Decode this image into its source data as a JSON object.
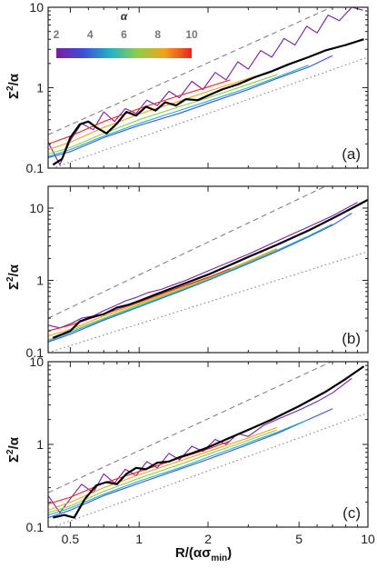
{
  "figure": {
    "x_axis_label_main": "R/(ασ",
    "x_axis_label_sub": "min",
    "x_axis_label_close": ")",
    "y_axis_label_main": "Σ",
    "y_axis_label_sup": "2",
    "y_axis_label_tail": "/α",
    "colorbar": {
      "title": "α",
      "tick_labels": [
        "2",
        "4",
        "6",
        "8",
        "10"
      ],
      "colors": [
        "#7a1fa2",
        "#3a4fd6",
        "#25b0c9",
        "#8ccf4a",
        "#f4a11e",
        "#e5261f"
      ]
    }
  },
  "chart_data": [
    {
      "type": "line",
      "panel_label": "(a)",
      "xscale": "log",
      "yscale": "log",
      "xlim": [
        0.4,
        10
      ],
      "ylim": [
        0.1,
        10
      ],
      "x_ticks": [
        0.5,
        1,
        2,
        5,
        10
      ],
      "x_tick_labels": [
        "",
        "",
        "",
        "",
        ""
      ],
      "y_ticks": [
        0.1,
        1,
        10
      ],
      "y_tick_labels": [
        "0.1",
        "1",
        "10"
      ],
      "reference_lines": [
        {
          "style": "dashed",
          "x": [
            0.4,
            10
          ],
          "y": [
            0.26,
            16.0
          ]
        },
        {
          "style": "dotted",
          "x": [
            0.4,
            10
          ],
          "y": [
            0.095,
            2.4
          ]
        }
      ],
      "series": [
        {
          "color": "#7a1fa2",
          "x": [
            0.4,
            0.45,
            0.5,
            0.56,
            0.63,
            0.7,
            0.78,
            0.87,
            0.97,
            1.08,
            1.2,
            1.35,
            1.5,
            1.7,
            1.9,
            2.15,
            2.4,
            2.7,
            3.0,
            3.4,
            3.8,
            4.3,
            4.8,
            5.4,
            6.0,
            6.7,
            7.5,
            8.5,
            9.5
          ],
          "y": [
            0.21,
            0.11,
            0.22,
            0.36,
            0.3,
            0.5,
            0.38,
            0.55,
            0.48,
            0.7,
            0.6,
            0.9,
            0.75,
            1.2,
            0.95,
            1.55,
            1.25,
            2.1,
            1.7,
            2.9,
            2.4,
            4.1,
            3.4,
            5.8,
            4.8,
            8.0,
            6.8,
            10.0,
            9.2
          ]
        },
        {
          "color": "#3a4fd6",
          "x": [
            0.4,
            0.5,
            0.7,
            1.0,
            1.5,
            2.0,
            3.0,
            4.0,
            5.5,
            7.0
          ],
          "y": [
            0.135,
            0.16,
            0.24,
            0.34,
            0.48,
            0.64,
            0.95,
            1.3,
            1.8,
            2.5
          ]
        },
        {
          "color": "#25b0c9",
          "x": [
            0.4,
            0.5,
            0.7,
            1.0,
            1.5,
            2.0,
            3.0,
            4.0,
            5.5
          ],
          "y": [
            0.14,
            0.17,
            0.25,
            0.36,
            0.52,
            0.68,
            1.0,
            1.35,
            1.9
          ]
        },
        {
          "color": "#8ccf4a",
          "x": [
            0.4,
            0.5,
            0.7,
            1.0,
            1.5,
            2.0,
            3.0,
            4.0
          ],
          "y": [
            0.15,
            0.18,
            0.27,
            0.4,
            0.58,
            0.75,
            1.1,
            1.45
          ]
        },
        {
          "color": "#f4a11e",
          "x": [
            0.4,
            0.5,
            0.7,
            1.0,
            1.5,
            2.0,
            3.0,
            4.0
          ],
          "y": [
            0.17,
            0.21,
            0.32,
            0.47,
            0.68,
            0.9,
            1.3,
            1.7
          ]
        },
        {
          "color": "#e5261f",
          "x": [
            0.4,
            0.5,
            0.7,
            1.0,
            1.5,
            2.0,
            2.5
          ],
          "y": [
            0.2,
            0.25,
            0.38,
            0.55,
            0.8,
            1.02,
            1.25
          ]
        },
        {
          "color": "#000000",
          "x": [
            0.42,
            0.46,
            0.5,
            0.55,
            0.6,
            0.65,
            0.72,
            0.8,
            0.88,
            0.97,
            1.07,
            1.18,
            1.3,
            1.45,
            1.6,
            1.8,
            2.0,
            2.3,
            2.7,
            3.2,
            3.8,
            4.5,
            5.5,
            6.5,
            8.0,
            9.6
          ],
          "y": [
            0.11,
            0.13,
            0.24,
            0.35,
            0.38,
            0.32,
            0.27,
            0.36,
            0.5,
            0.45,
            0.58,
            0.52,
            0.66,
            0.6,
            0.72,
            0.7,
            0.8,
            0.95,
            1.1,
            1.35,
            1.6,
            1.95,
            2.4,
            2.9,
            3.4,
            4.0
          ]
        }
      ]
    },
    {
      "type": "line",
      "panel_label": "(b)",
      "xscale": "log",
      "yscale": "log",
      "xlim": [
        0.4,
        10
      ],
      "ylim": [
        0.1,
        20
      ],
      "x_ticks": [
        0.5,
        1,
        2,
        5,
        10
      ],
      "x_tick_labels": [
        "",
        "",
        "",
        "",
        ""
      ],
      "y_ticks": [
        0.1,
        1,
        10
      ],
      "y_tick_labels": [
        "0.1",
        "1",
        "10"
      ],
      "reference_lines": [
        {
          "style": "dashed",
          "x": [
            0.4,
            10
          ],
          "y": [
            0.3,
            38.0
          ]
        },
        {
          "style": "dotted",
          "x": [
            0.4,
            10
          ],
          "y": [
            0.1,
            2.5
          ]
        }
      ],
      "series": [
        {
          "color": "#7a1fa2",
          "x": [
            0.4,
            0.45,
            0.5,
            0.56,
            0.63,
            0.7,
            0.78,
            0.87,
            0.97,
            1.1,
            1.25,
            1.4,
            1.6,
            2.0,
            3.0,
            4.0,
            5.5,
            7.0,
            9.0
          ],
          "y": [
            0.24,
            0.22,
            0.25,
            0.3,
            0.32,
            0.38,
            0.44,
            0.52,
            0.58,
            0.68,
            0.75,
            0.86,
            1.0,
            1.35,
            2.3,
            3.5,
            5.5,
            7.8,
            12.0
          ]
        },
        {
          "color": "#3a4fd6",
          "x": [
            0.4,
            0.5,
            0.7,
            1.0,
            1.5,
            2.0,
            3.0,
            4.0,
            5.5,
            7.0,
            8.5
          ],
          "y": [
            0.14,
            0.18,
            0.28,
            0.43,
            0.7,
            1.0,
            1.7,
            2.5,
            4.0,
            5.8,
            8.5
          ]
        },
        {
          "color": "#25b0c9",
          "x": [
            0.4,
            0.5,
            0.7,
            1.0,
            1.5,
            2.0,
            3.0,
            4.0,
            5.5,
            7.0
          ],
          "y": [
            0.145,
            0.19,
            0.29,
            0.44,
            0.72,
            1.02,
            1.75,
            2.6,
            4.1,
            6.0
          ]
        },
        {
          "color": "#8ccf4a",
          "x": [
            0.4,
            0.5,
            0.7,
            1.0,
            1.5,
            2.0,
            3.0,
            4.0
          ],
          "y": [
            0.15,
            0.2,
            0.3,
            0.46,
            0.74,
            1.05,
            1.8,
            2.7
          ]
        },
        {
          "color": "#f4a11e",
          "x": [
            0.4,
            0.5,
            0.7,
            1.0,
            1.5,
            2.0,
            3.0,
            4.0
          ],
          "y": [
            0.17,
            0.21,
            0.32,
            0.48,
            0.77,
            1.08,
            1.85,
            2.75
          ]
        },
        {
          "color": "#e5261f",
          "x": [
            0.4,
            0.5,
            0.7,
            1.0,
            1.5,
            2.0,
            2.5
          ],
          "y": [
            0.2,
            0.24,
            0.34,
            0.5,
            0.8,
            1.1,
            1.45
          ]
        },
        {
          "color": "#000000",
          "x": [
            0.42,
            0.5,
            0.55,
            0.62,
            0.7,
            0.8,
            0.9,
            1.0,
            1.2,
            1.5,
            2.0,
            3.0,
            4.0,
            5.5,
            7.0,
            10.0
          ],
          "y": [
            0.16,
            0.2,
            0.27,
            0.31,
            0.34,
            0.42,
            0.46,
            0.52,
            0.65,
            0.85,
            1.2,
            2.1,
            3.1,
            4.9,
            7.2,
            13.0
          ]
        }
      ]
    },
    {
      "type": "line",
      "panel_label": "(c)",
      "xscale": "log",
      "yscale": "log",
      "xlim": [
        0.4,
        10
      ],
      "ylim": [
        0.1,
        10
      ],
      "x_ticks": [
        0.5,
        1,
        2,
        5,
        10
      ],
      "x_tick_labels": [
        "0.5",
        "1",
        "2",
        "5",
        "10"
      ],
      "y_ticks": [
        0.1,
        1,
        10
      ],
      "y_tick_labels": [
        "0.1",
        "1",
        "10"
      ],
      "reference_lines": [
        {
          "style": "dashed",
          "x": [
            0.4,
            10
          ],
          "y": [
            0.26,
            16.0
          ]
        },
        {
          "style": "dotted",
          "x": [
            0.4,
            10
          ],
          "y": [
            0.095,
            2.4
          ]
        }
      ],
      "series": [
        {
          "color": "#7a1fa2",
          "x": [
            0.4,
            0.45,
            0.5,
            0.56,
            0.63,
            0.7,
            0.78,
            0.87,
            0.97,
            1.08,
            1.2,
            1.35,
            1.5,
            1.7,
            1.9,
            2.15,
            2.4,
            2.7,
            3.0,
            3.5,
            4.0,
            5.0,
            6.0,
            7.0,
            8.5
          ],
          "y": [
            0.24,
            0.15,
            0.22,
            0.33,
            0.26,
            0.44,
            0.34,
            0.5,
            0.42,
            0.62,
            0.52,
            0.78,
            0.65,
            0.95,
            0.82,
            1.15,
            1.0,
            1.35,
            1.25,
            1.7,
            2.0,
            2.6,
            3.3,
            4.2,
            6.3
          ]
        },
        {
          "color": "#3a4fd6",
          "x": [
            0.4,
            0.5,
            0.7,
            1.0,
            1.5,
            2.0,
            3.0,
            4.0,
            5.5,
            7.0
          ],
          "y": [
            0.13,
            0.16,
            0.24,
            0.34,
            0.5,
            0.66,
            1.0,
            1.35,
            2.0,
            2.7
          ]
        },
        {
          "color": "#25b0c9",
          "x": [
            0.4,
            0.5,
            0.7,
            1.0,
            1.5,
            2.0,
            3.0,
            4.0,
            5.5
          ],
          "y": [
            0.14,
            0.17,
            0.25,
            0.36,
            0.52,
            0.7,
            1.05,
            1.4,
            2.0
          ]
        },
        {
          "color": "#8ccf4a",
          "x": [
            0.4,
            0.5,
            0.7,
            1.0,
            1.5,
            2.0,
            3.0,
            4.0
          ],
          "y": [
            0.15,
            0.18,
            0.27,
            0.39,
            0.57,
            0.76,
            1.12,
            1.5
          ]
        },
        {
          "color": "#f4a11e",
          "x": [
            0.4,
            0.5,
            0.7,
            1.0,
            1.5,
            2.0,
            3.0,
            4.0
          ],
          "y": [
            0.16,
            0.2,
            0.3,
            0.43,
            0.63,
            0.82,
            1.2,
            1.6
          ]
        },
        {
          "color": "#e5261f",
          "x": [
            0.4,
            0.5,
            0.7,
            1.0,
            1.5,
            2.0,
            2.5
          ],
          "y": [
            0.19,
            0.23,
            0.34,
            0.47,
            0.68,
            0.88,
            1.1
          ]
        },
        {
          "color": "#000000",
          "x": [
            0.42,
            0.47,
            0.52,
            0.58,
            0.65,
            0.72,
            0.8,
            0.88,
            0.97,
            1.07,
            1.2,
            1.35,
            1.5,
            1.7,
            2.0,
            2.4,
            3.0,
            3.8,
            5.0,
            6.5,
            8.0,
            9.6
          ],
          "y": [
            0.13,
            0.14,
            0.13,
            0.22,
            0.32,
            0.35,
            0.33,
            0.44,
            0.52,
            0.5,
            0.6,
            0.62,
            0.7,
            0.78,
            0.92,
            1.15,
            1.5,
            2.0,
            2.9,
            4.3,
            6.2,
            8.8
          ]
        }
      ]
    }
  ]
}
